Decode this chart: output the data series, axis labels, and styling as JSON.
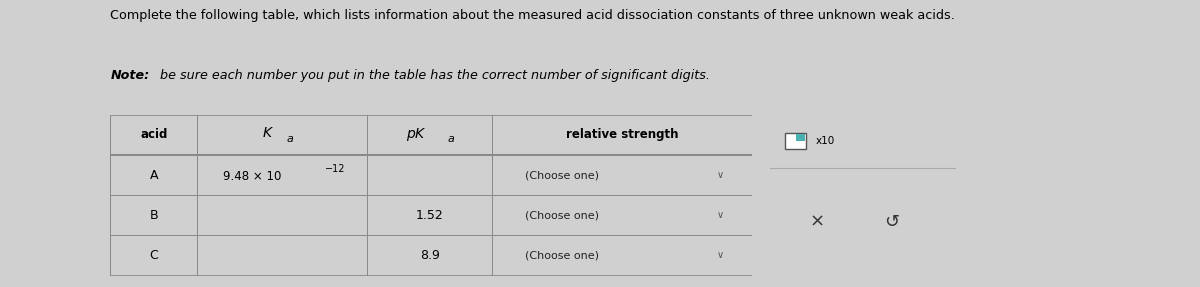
{
  "title_line1": "Complete the following table, which lists information about the measured acid dissociation constants of three unknown weak acids.",
  "title_line2_note": "Note:",
  "title_line2_rest": " be sure each number you put in the table has the correct number of significant digits.",
  "bg_color": "#d0d0d0",
  "table_bg": "#ffffff",
  "input_box_border": "#6699cc",
  "input_box_fill": "#ddeeff",
  "dropdown_border": "#aaaaaa",
  "dropdown_fill": "#f5f5f5",
  "popup_top_bg": "#ffffff",
  "popup_bot_bg": "#b8bcbe",
  "popup_border": "#aaaaaa",
  "row_data": [
    {
      "acid": "A",
      "ka_text": "9.48 × 10",
      "ka_sup": "−12",
      "pka": "",
      "pka_has_input": true,
      "ka_has_input": false
    },
    {
      "acid": "B",
      "ka_text": "",
      "ka_sup": "",
      "pka": "1.52",
      "pka_has_input": false,
      "ka_has_input": true
    },
    {
      "acid": "C",
      "ka_text": "",
      "ka_sup": "",
      "pka": "8.9",
      "pka_has_input": false,
      "ka_has_input": true
    }
  ],
  "col_labels": [
    "acid",
    "Ka",
    "pKa",
    "relative strength"
  ],
  "dropdown_text": "(Choose one)",
  "checkbox_label": "x10",
  "popup_x": "×",
  "popup_undo": "↺"
}
